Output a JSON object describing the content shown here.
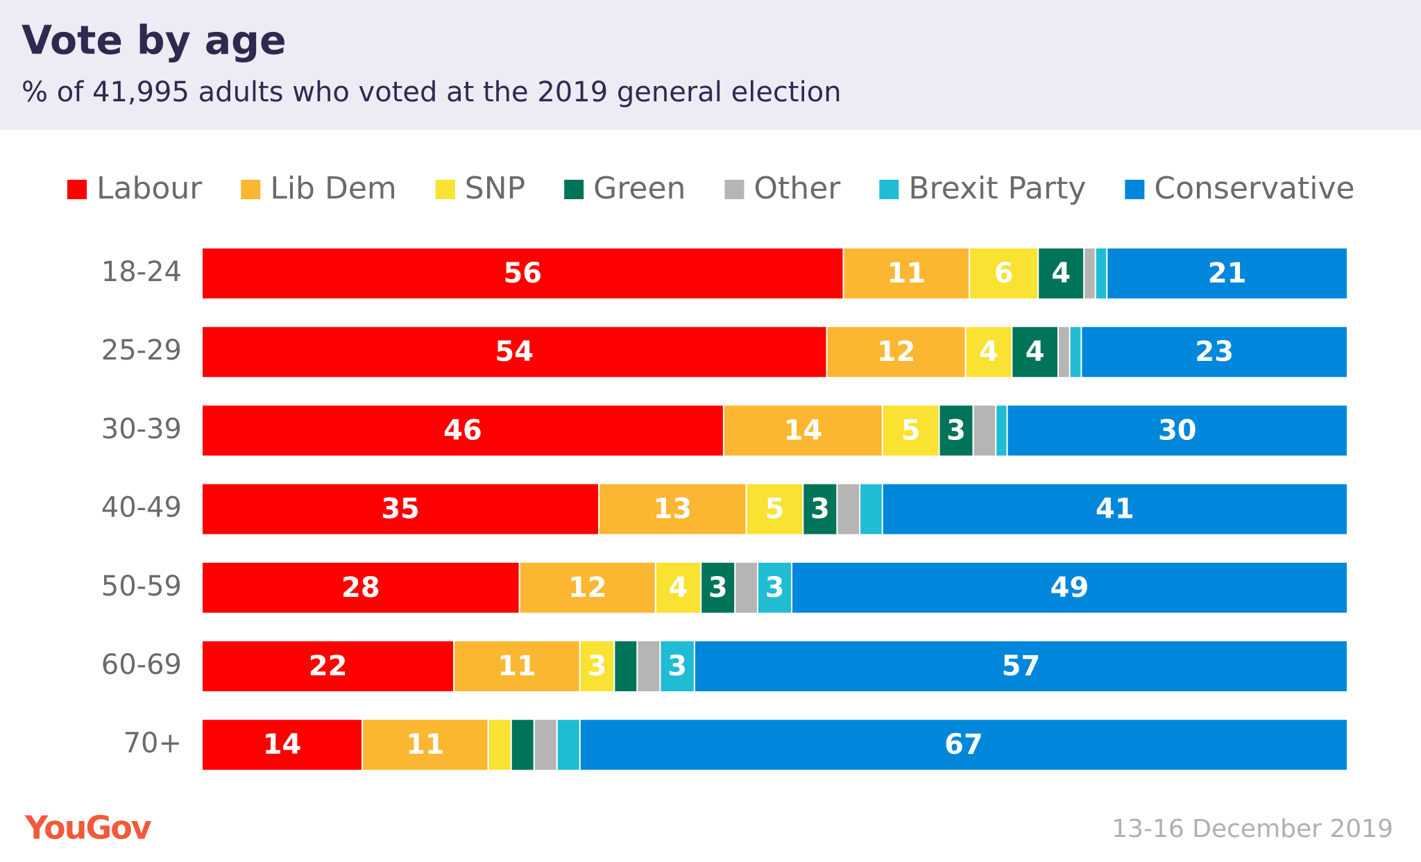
{
  "chart_data": {
    "type": "stacked-bar-horizontal",
    "title": "Vote by age",
    "subtitle": "% of 41,995 adults who voted at the 2019 general election",
    "categories": [
      "18-24",
      "25-29",
      "30-39",
      "40-49",
      "50-59",
      "60-69",
      "70+"
    ],
    "series": [
      {
        "name": "Labour",
        "color": "#fe0000",
        "values": [
          56,
          54,
          46,
          35,
          28,
          22,
          14
        ]
      },
      {
        "name": "Lib Dem",
        "color": "#fbb731",
        "values": [
          11,
          12,
          14,
          13,
          12,
          11,
          11
        ]
      },
      {
        "name": "SNP",
        "color": "#f9e231",
        "values": [
          6,
          4,
          5,
          5,
          4,
          3,
          2
        ]
      },
      {
        "name": "Green",
        "color": "#007458",
        "values": [
          4,
          4,
          3,
          3,
          3,
          2,
          2
        ]
      },
      {
        "name": "Other",
        "color": "#b5b5b5",
        "values": [
          1,
          1,
          2,
          2,
          2,
          2,
          2
        ]
      },
      {
        "name": "Brexit Party",
        "color": "#1fbcd4",
        "values": [
          1,
          1,
          1,
          2,
          3,
          3,
          2
        ]
      },
      {
        "name": "Conservative",
        "color": "#0087dc",
        "values": [
          21,
          23,
          30,
          41,
          49,
          57,
          67
        ]
      }
    ],
    "source": "YouGov",
    "date": "13-16 December 2019"
  }
}
